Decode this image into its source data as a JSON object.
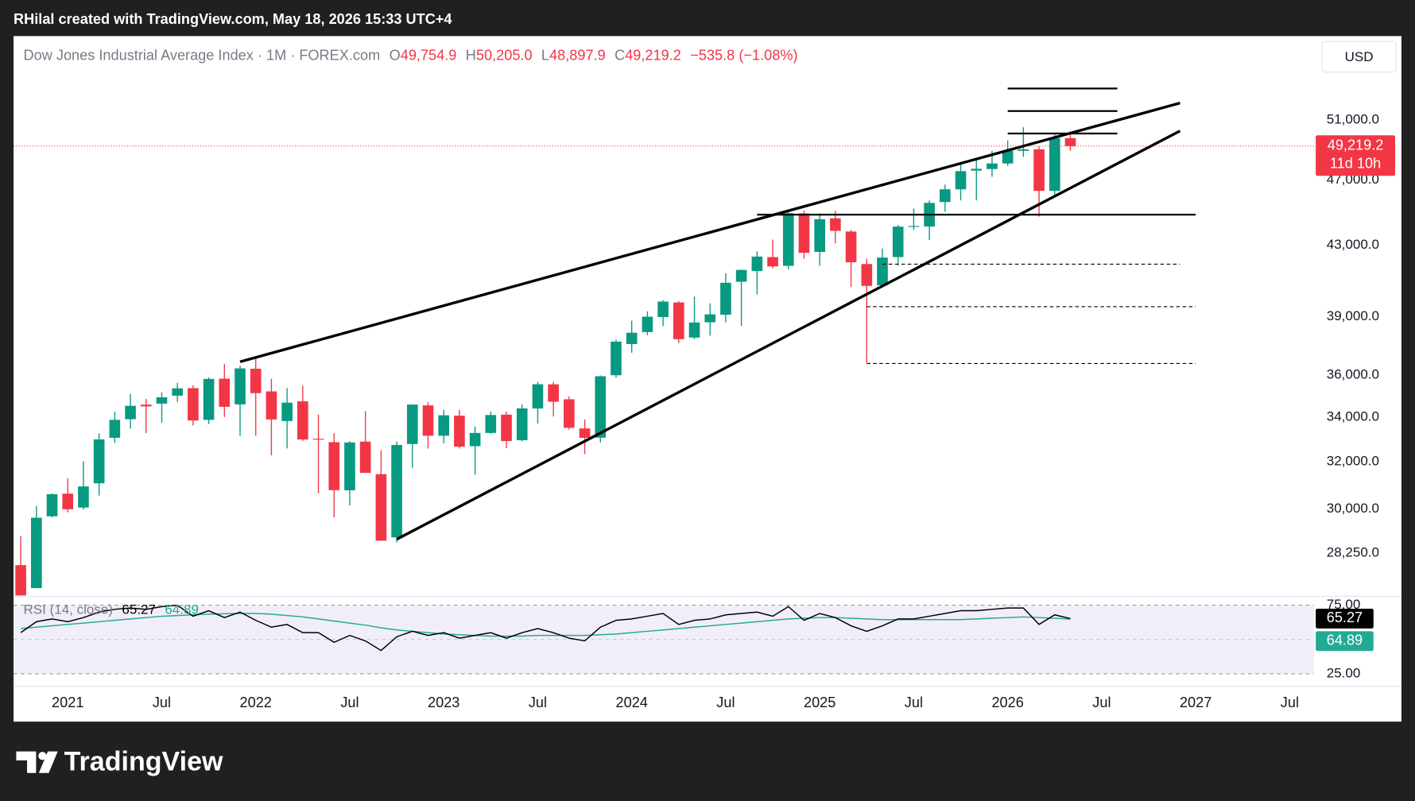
{
  "header": {
    "caption": "RHilal created with TradingView.com, May 18, 2026 15:33 UTC+4",
    "logo": "TradingView"
  },
  "chart_data": [
    {
      "type": "candlestick",
      "title": "Dow Jones Industrial Average Index · 1M · FOREX.com",
      "ohlc_legend": [
        {
          "key": "O",
          "value": "49,754.9"
        },
        {
          "key": "H",
          "value": "50,205.0"
        },
        {
          "key": "L",
          "value": "48,897.9"
        },
        {
          "key": "C",
          "value": "49,219.2"
        }
      ],
      "change": "−535.8 (−1.08%)",
      "currency": "USD",
      "price_tag": {
        "label": "49,219.2",
        "countdown": "11d 10h"
      },
      "categories": [
        "2020-10",
        "2020-11",
        "2020-12",
        "2021-01",
        "2021-02",
        "2021-03",
        "2021-04",
        "2021-05",
        "2021-06",
        "2021-07",
        "2021-08",
        "2021-09",
        "2021-10",
        "2021-11",
        "2021-12",
        "2022-01",
        "2022-02",
        "2022-03",
        "2022-04",
        "2022-05",
        "2022-06",
        "2022-07",
        "2022-08",
        "2022-09",
        "2022-10",
        "2022-11",
        "2022-12",
        "2023-01",
        "2023-02",
        "2023-03",
        "2023-04",
        "2023-05",
        "2023-06",
        "2023-07",
        "2023-08",
        "2023-09",
        "2023-10",
        "2023-11",
        "2023-12",
        "2024-01",
        "2024-02",
        "2024-03",
        "2024-04",
        "2024-05",
        "2024-06",
        "2024-07",
        "2024-08",
        "2024-09",
        "2024-10",
        "2024-11",
        "2024-12",
        "2025-01",
        "2025-02",
        "2025-03",
        "2025-04",
        "2025-05",
        "2025-06",
        "2025-07",
        "2025-08",
        "2025-09",
        "2025-10",
        "2025-11",
        "2025-12",
        "2026-01",
        "2026-02",
        "2026-03",
        "2026-04",
        "2026-05"
      ],
      "open": [
        27782,
        26925,
        29697,
        30628,
        30054,
        31065,
        33054,
        33904,
        34584,
        34633,
        35010,
        35371,
        33874,
        35834,
        34596,
        36322,
        35216,
        33820,
        34740,
        33012,
        32858,
        30770,
        32883,
        31454,
        28855,
        32776,
        34549,
        33148,
        34069,
        32679,
        33275,
        34115,
        32944,
        34402,
        35555,
        34838,
        33479,
        33061,
        36000,
        37566,
        38186,
        38977,
        39760,
        37900,
        38700,
        39100,
        40900,
        41500,
        42300,
        41800,
        44900,
        42600,
        44600,
        43800,
        41900,
        40700,
        42300,
        44100,
        44100,
        45600,
        46400,
        47600,
        47700,
        48063,
        48900,
        49000,
        46300,
        49754.9
      ],
      "high": [
        28902,
        30116,
        30637,
        31272,
        32010,
        33259,
        34257,
        35092,
        34849,
        35171,
        35631,
        35510,
        35892,
        36566,
        36472,
        36952,
        35824,
        35372,
        35492,
        34117,
        33272,
        32910,
        34281,
        32504,
        32883,
        34589,
        34712,
        34342,
        34335,
        33572,
        34257,
        34257,
        34588,
        35679,
        35679,
        34979,
        33893,
        35989,
        37790,
        38783,
        39283,
        39890,
        39825,
        40077,
        39713,
        41376,
        41585,
        42628,
        43325,
        45000,
        45073,
        44900,
        45054,
        43900,
        42200,
        42800,
        44200,
        45200,
        45700,
        46700,
        48000,
        48400,
        48900,
        49600,
        50500,
        49200,
        50000,
        50205
      ],
      "low": [
        26143,
        26925,
        29650,
        29856,
        29970,
        30547,
        32835,
        33474,
        33272,
        33741,
        34712,
        33613,
        33686,
        34006,
        33150,
        33150,
        32272,
        32578,
        32913,
        30635,
        29653,
        30143,
        31510,
        28715,
        28660,
        31728,
        32573,
        32812,
        32575,
        31429,
        33235,
        32586,
        32900,
        33706,
        34029,
        33418,
        32327,
        32846,
        35876,
        37123,
        38027,
        38500,
        37612,
        37815,
        38000,
        38700,
        38500,
        40200,
        41650,
        41600,
        42200,
        41800,
        43100,
        40600,
        36612,
        40600,
        41800,
        43900,
        43300,
        45000,
        45700,
        45700,
        47200,
        47900,
        48500,
        44700,
        46000,
        48897.9
      ],
      "close": [
        26502,
        29639,
        30606,
        29983,
        30932,
        32982,
        33875,
        34529,
        34503,
        34935,
        35361,
        33844,
        35820,
        34484,
        36338,
        35132,
        33893,
        34678,
        32977,
        32990,
        30775,
        32845,
        31510,
        28725,
        32732,
        34589,
        33147,
        34086,
        32656,
        33274,
        34098,
        32908,
        34407,
        35559,
        34722,
        33508,
        33053,
        35951,
        37690,
        38150,
        38996,
        39807,
        37816,
        38686,
        39119,
        40843,
        41563,
        42330,
        41763,
        44910,
        42544,
        44544,
        43841,
        42002,
        40669,
        42270,
        44095,
        44131,
        45545,
        46398,
        47563,
        47716,
        48063,
        48900,
        49000,
        46300,
        49750,
        49219.2
      ],
      "up_color": "#089981",
      "down_color": "#f23645",
      "ylim": [
        26660,
        57190
      ],
      "log_scale": true,
      "grid": false,
      "yticks": [
        {
          "value": 28250,
          "label": "28,250.0"
        },
        {
          "value": 30000,
          "label": "30,000.0"
        },
        {
          "value": 32000,
          "label": "32,000.0"
        },
        {
          "value": 34000,
          "label": "34,000.0"
        },
        {
          "value": 36000,
          "label": "36,000.0"
        },
        {
          "value": 39000,
          "label": "39,000.0"
        },
        {
          "value": 43000,
          "label": "43,000.0"
        },
        {
          "value": 47000,
          "label": "47,000.0"
        },
        {
          "value": 51000,
          "label": "51,000.0"
        }
      ],
      "xticks": [
        {
          "value": "2021-01",
          "label": "2021"
        },
        {
          "value": "2021-07",
          "label": "Jul"
        },
        {
          "value": "2022-01",
          "label": "2022"
        },
        {
          "value": "2022-07",
          "label": "Jul"
        },
        {
          "value": "2023-01",
          "label": "2023"
        },
        {
          "value": "2023-07",
          "label": "Jul"
        },
        {
          "value": "2024-01",
          "label": "2024"
        },
        {
          "value": "2024-07",
          "label": "Jul"
        },
        {
          "value": "2025-01",
          "label": "2025"
        },
        {
          "value": "2025-07",
          "label": "Jul"
        },
        {
          "value": "2026-01",
          "label": "2026"
        },
        {
          "value": "2026-07",
          "label": "Jul"
        },
        {
          "value": "2027-01",
          "label": "2027"
        },
        {
          "value": "2027-07",
          "label": "Jul"
        }
      ],
      "drawings": [
        {
          "style": "solid",
          "weight": 3,
          "points": [
            [
              "2021-12",
              36670
            ],
            [
              "2026-12",
              52200
            ]
          ]
        },
        {
          "style": "solid",
          "weight": 3,
          "points": [
            [
              "2022-10",
              28780
            ],
            [
              "2026-12",
              50250
            ]
          ]
        },
        {
          "style": "solid",
          "weight": 2,
          "points": [
            [
              "2024-09",
              44820
            ],
            [
              "2027-01",
              44820
            ]
          ]
        },
        {
          "style": "dashed",
          "weight": 1,
          "points": [
            [
              "2025-05",
              41890
            ],
            [
              "2026-12",
              41890
            ]
          ]
        },
        {
          "style": "dashed",
          "weight": 1,
          "points": [
            [
              "2025-04",
              39530
            ],
            [
              "2027-01",
              39530
            ]
          ]
        },
        {
          "style": "dashed",
          "weight": 1,
          "points": [
            [
              "2025-04",
              36580
            ],
            [
              "2027-01",
              36580
            ]
          ]
        },
        {
          "style": "solid",
          "weight": 2,
          "points": [
            [
              "2026-01",
              53240
            ],
            [
              "2026-08",
              53240
            ]
          ]
        },
        {
          "style": "solid",
          "weight": 2,
          "points": [
            [
              "2026-01",
              51630
            ],
            [
              "2026-08",
              51630
            ]
          ]
        },
        {
          "style": "solid",
          "weight": 2,
          "points": [
            [
              "2026-01",
              50070
            ],
            [
              "2026-08",
              50070
            ]
          ]
        }
      ]
    },
    {
      "type": "line",
      "title": "RSI (14, close)",
      "series": [
        {
          "color": "#000000",
          "values": [
            55,
            63,
            65,
            63,
            66,
            70,
            72,
            73,
            72,
            74,
            75,
            67,
            71,
            66,
            70,
            64,
            59,
            61,
            55,
            55,
            48,
            53,
            49,
            42,
            52,
            56,
            53,
            55,
            51,
            53,
            55,
            51,
            55,
            58,
            55,
            51,
            49,
            59,
            64,
            65,
            67,
            69,
            61,
            64,
            65,
            68,
            69,
            70,
            67,
            74,
            64,
            69,
            66,
            60,
            56,
            60,
            65,
            65,
            67,
            69,
            71,
            71,
            72,
            73,
            73,
            61,
            68,
            65.27
          ]
        },
        {
          "color": "#22ab94",
          "values": [
            58,
            59,
            60,
            61,
            62,
            63,
            64,
            65,
            66,
            67,
            67.5,
            68,
            68.5,
            68.8,
            69,
            69,
            68.5,
            67.5,
            66.5,
            65,
            63.5,
            62,
            60.5,
            58.5,
            57,
            56,
            55,
            54,
            53.5,
            53,
            52.5,
            52.5,
            52.5,
            53,
            53,
            53,
            53,
            53.5,
            54,
            55,
            56,
            57,
            58,
            59,
            60,
            61,
            62,
            63,
            64,
            65,
            65.5,
            66,
            66,
            65.5,
            65,
            64.5,
            64.5,
            64.5,
            64.5,
            64.5,
            64.5,
            65,
            65.5,
            66,
            66.5,
            66,
            65.5,
            64.89
          ]
        }
      ],
      "ylim": [
        16.45,
        80.9
      ],
      "yticks": [
        {
          "value": 75,
          "label": "75.00"
        },
        {
          "value": 25,
          "label": "25.00"
        }
      ],
      "midline": 50,
      "band_color": "#7e57c2"
    }
  ]
}
